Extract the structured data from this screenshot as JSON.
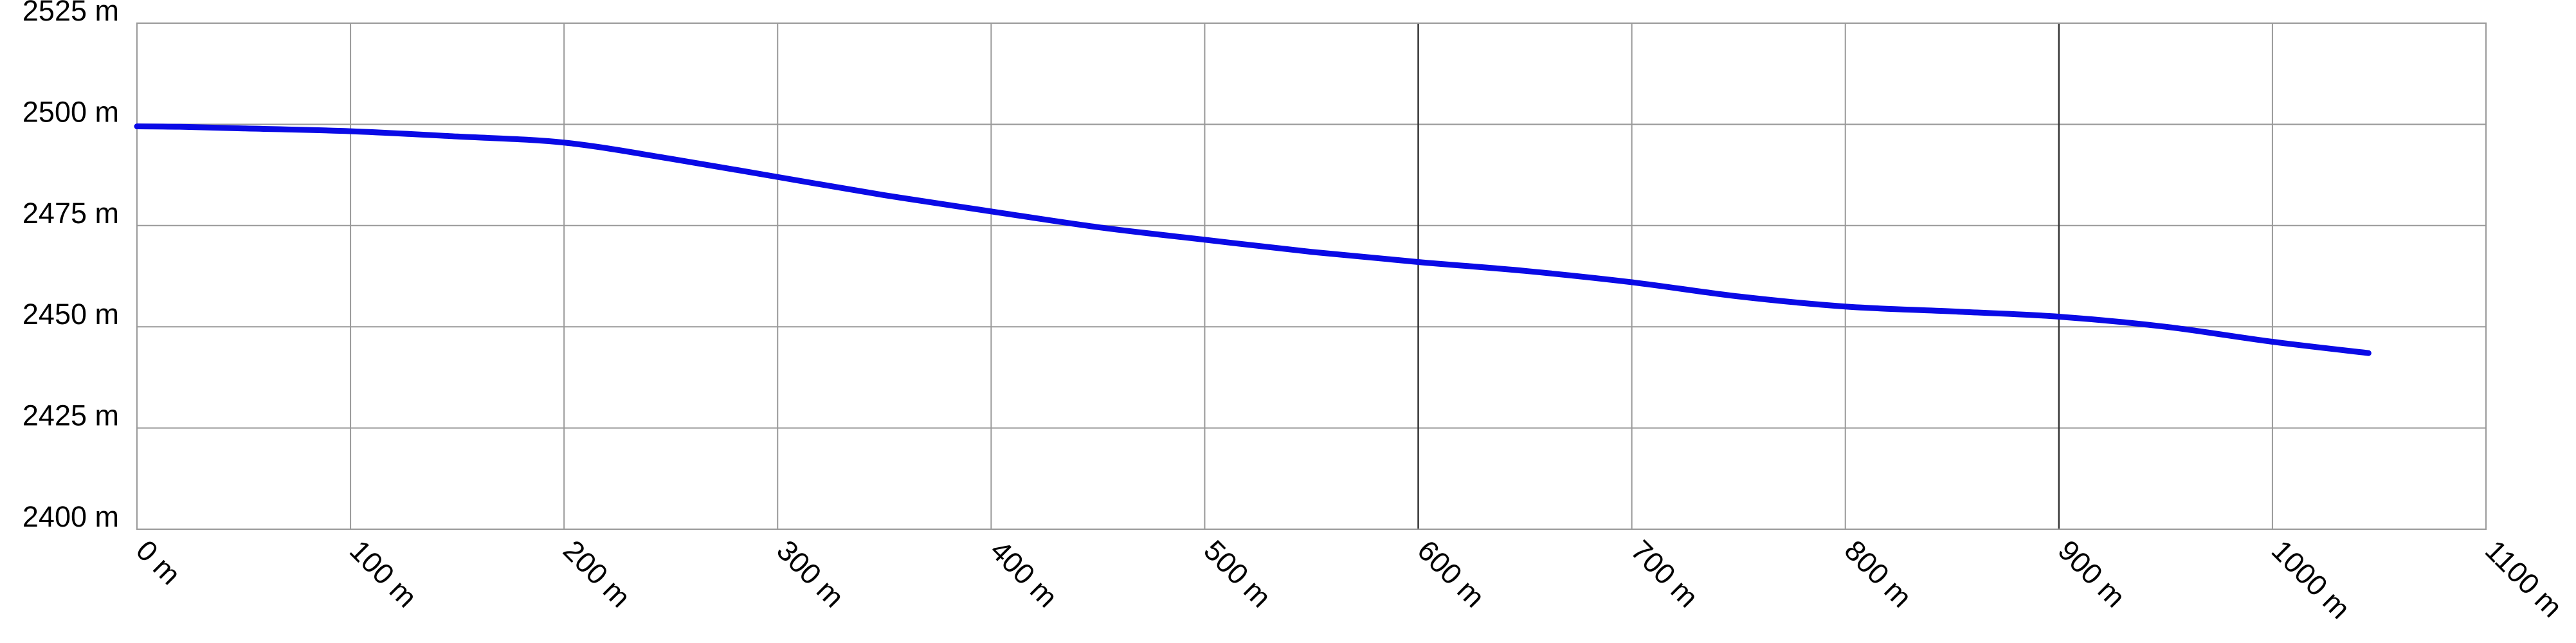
{
  "chart_data": {
    "type": "line",
    "title": "",
    "xlabel": "",
    "ylabel": "",
    "xlim": [
      0,
      1100
    ],
    "ylim": [
      2400,
      2525
    ],
    "x_ticks": [
      0,
      100,
      200,
      300,
      400,
      500,
      600,
      700,
      800,
      900,
      1000,
      1100
    ],
    "x_tick_labels": [
      "0 m",
      "100 m",
      "200 m",
      "300 m",
      "400 m",
      "500 m",
      "600 m",
      "700 m",
      "800 m",
      "900 m",
      "1000 m",
      "1100 m"
    ],
    "x_major_ticks": [
      600,
      900
    ],
    "y_ticks": [
      2400,
      2425,
      2450,
      2475,
      2500,
      2525
    ],
    "y_tick_labels": [
      "2400 m",
      "2425 m",
      "2450 m",
      "2475 m",
      "2500 m",
      "2525 m"
    ],
    "grid": true,
    "legend": "none",
    "colors": {
      "line": "#0a0ae6",
      "grid": "#999999",
      "grid_major": "#333333"
    },
    "series": [
      {
        "x": [
          0,
          20,
          50,
          100,
          150,
          200,
          250,
          300,
          350,
          400,
          450,
          500,
          550,
          600,
          650,
          700,
          750,
          800,
          850,
          900,
          950,
          1000,
          1045
        ],
        "y": [
          2499.5,
          2499.4,
          2499.0,
          2498.3,
          2497.0,
          2495.5,
          2491.5,
          2487.0,
          2482.5,
          2478.5,
          2474.6,
          2471.5,
          2468.5,
          2466.0,
          2463.8,
          2461.0,
          2457.5,
          2455.0,
          2453.8,
          2452.5,
          2450.0,
          2446.3,
          2443.5
        ]
      }
    ]
  }
}
